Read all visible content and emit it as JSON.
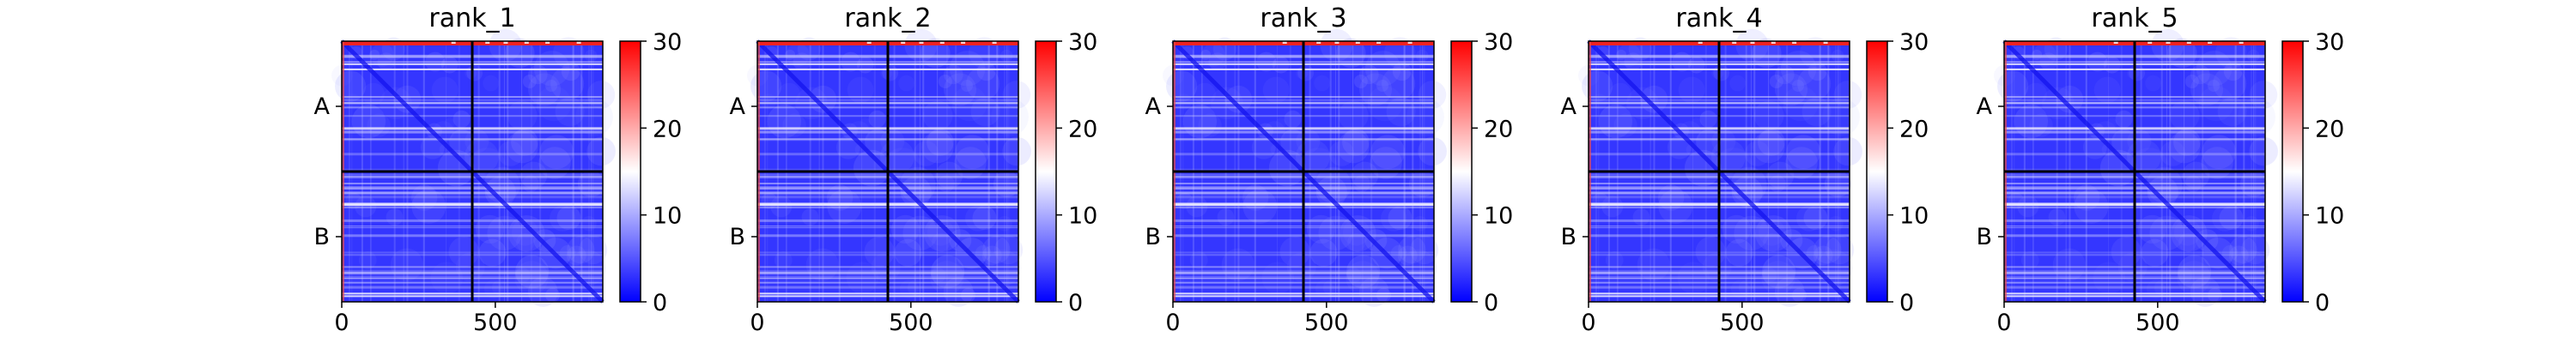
{
  "chart_data": [
    {
      "type": "heatmap",
      "title": "rank_1",
      "x_ticks": [
        0,
        500
      ],
      "y_ticks": [
        "A",
        "B"
      ],
      "xlim": [
        0,
        850
      ],
      "colorbar": {
        "range": [
          0,
          30
        ],
        "ticks": [
          0,
          10,
          20,
          30
        ],
        "colormap": [
          "#0000ff",
          "#ffffff",
          "#ff0000"
        ]
      },
      "chain_boundary": 425,
      "grid": false
    },
    {
      "type": "heatmap",
      "title": "rank_2",
      "x_ticks": [
        0,
        500
      ],
      "y_ticks": [
        "A",
        "B"
      ],
      "xlim": [
        0,
        850
      ],
      "colorbar": {
        "range": [
          0,
          30
        ],
        "ticks": [
          0,
          10,
          20,
          30
        ],
        "colormap": [
          "#0000ff",
          "#ffffff",
          "#ff0000"
        ]
      },
      "chain_boundary": 425,
      "grid": false
    },
    {
      "type": "heatmap",
      "title": "rank_3",
      "x_ticks": [
        0,
        500
      ],
      "y_ticks": [
        "A",
        "B"
      ],
      "xlim": [
        0,
        850
      ],
      "colorbar": {
        "range": [
          0,
          30
        ],
        "ticks": [
          0,
          10,
          20,
          30
        ],
        "colormap": [
          "#0000ff",
          "#ffffff",
          "#ff0000"
        ]
      },
      "chain_boundary": 425,
      "grid": false
    },
    {
      "type": "heatmap",
      "title": "rank_4",
      "x_ticks": [
        0,
        500
      ],
      "y_ticks": [
        "A",
        "B"
      ],
      "xlim": [
        0,
        850
      ],
      "colorbar": {
        "range": [
          0,
          30
        ],
        "ticks": [
          0,
          10,
          20,
          30
        ],
        "colormap": [
          "#0000ff",
          "#ffffff",
          "#ff0000"
        ]
      },
      "chain_boundary": 425,
      "grid": false
    },
    {
      "type": "heatmap",
      "title": "rank_5",
      "x_ticks": [
        0,
        500
      ],
      "y_ticks": [
        "A",
        "B"
      ],
      "xlim": [
        0,
        850
      ],
      "colorbar": {
        "range": [
          0,
          30
        ],
        "ticks": [
          0,
          10,
          20,
          30
        ],
        "colormap": [
          "#0000ff",
          "#ffffff",
          "#ff0000"
        ]
      },
      "chain_boundary": 425,
      "grid": false
    }
  ]
}
